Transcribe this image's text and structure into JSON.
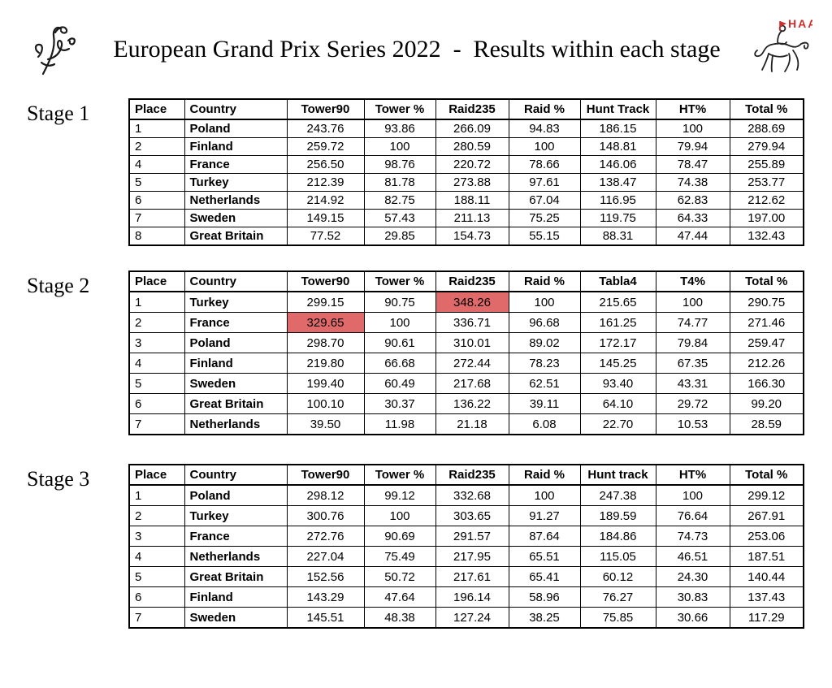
{
  "page": {
    "title": "European Grand Prix Series 2022  -  Results within each stage",
    "logo_right_text": "HAA"
  },
  "highlight_color": "#e06a6a",
  "stages": [
    {
      "label": "Stage 1",
      "columns": [
        "Place",
        "Country",
        "Tower90",
        "Tower %",
        "Raid235",
        "Raid %",
        "Hunt Track",
        "HT%",
        "Total %"
      ],
      "rows": [
        [
          "1",
          "Poland",
          "243.76",
          "93.86",
          "266.09",
          "94.83",
          "186.15",
          "100",
          "288.69"
        ],
        [
          "2",
          "Finland",
          "259.72",
          "100",
          "280.59",
          "100",
          "148.81",
          "79.94",
          "279.94"
        ],
        [
          "4",
          "France",
          "256.50",
          "98.76",
          "220.72",
          "78.66",
          "146.06",
          "78.47",
          "255.89"
        ],
        [
          "5",
          "Turkey",
          "212.39",
          "81.78",
          "273.88",
          "97.61",
          "138.47",
          "74.38",
          "253.77"
        ],
        [
          "6",
          "Netherlands",
          "214.92",
          "82.75",
          "188.11",
          "67.04",
          "116.95",
          "62.83",
          "212.62"
        ],
        [
          "7",
          "Sweden",
          "149.15",
          "57.43",
          "211.13",
          "75.25",
          "119.75",
          "64.33",
          "197.00"
        ],
        [
          "8",
          "Great Britain",
          "77.52",
          "29.85",
          "154.73",
          "55.15",
          "88.31",
          "47.44",
          "132.43"
        ]
      ],
      "highlights": []
    },
    {
      "label": "Stage 2",
      "columns": [
        "Place",
        "Country",
        "Tower90",
        "Tower %",
        "Raid235",
        "Raid %",
        "Tabla4",
        "T4%",
        "Total %"
      ],
      "rows": [
        [
          "1",
          "Turkey",
          "299.15",
          "90.75",
          "348.26",
          "100",
          "215.65",
          "100",
          "290.75"
        ],
        [
          "2",
          "France",
          "329.65",
          "100",
          "336.71",
          "96.68",
          "161.25",
          "74.77",
          "271.46"
        ],
        [
          "3",
          "Poland",
          "298.70",
          "90.61",
          "310.01",
          "89.02",
          "172.17",
          "79.84",
          "259.47"
        ],
        [
          "4",
          "Finland",
          "219.80",
          "66.68",
          "272.44",
          "78.23",
          "145.25",
          "67.35",
          "212.26"
        ],
        [
          "5",
          "Sweden",
          "199.40",
          "60.49",
          "217.68",
          "62.51",
          "93.40",
          "43.31",
          "166.30"
        ],
        [
          "6",
          "Great Britain",
          "100.10",
          "30.37",
          "136.22",
          "39.11",
          "64.10",
          "29.72",
          "99.20"
        ],
        [
          "7",
          "Netherlands",
          "39.50",
          "11.98",
          "21.18",
          "6.08",
          "22.70",
          "10.53",
          "28.59"
        ]
      ],
      "highlights": [
        {
          "row": 0,
          "col": 4
        },
        {
          "row": 1,
          "col": 2
        }
      ]
    },
    {
      "label": "Stage 3",
      "columns": [
        "Place",
        "Country",
        "Tower90",
        "Tower %",
        "Raid235",
        "Raid %",
        "Hunt track",
        "HT%",
        "Total %"
      ],
      "rows": [
        [
          "1",
          "Poland",
          "298.12",
          "99.12",
          "332.68",
          "100",
          "247.38",
          "100",
          "299.12"
        ],
        [
          "2",
          "Turkey",
          "300.76",
          "100",
          "303.65",
          "91.27",
          "189.59",
          "76.64",
          "267.91"
        ],
        [
          "3",
          "France",
          "272.76",
          "90.69",
          "291.57",
          "87.64",
          "184.86",
          "74.73",
          "253.06"
        ],
        [
          "4",
          "Netherlands",
          "227.04",
          "75.49",
          "217.95",
          "65.51",
          "115.05",
          "46.51",
          "187.51"
        ],
        [
          "5",
          "Great Britain",
          "152.56",
          "50.72",
          "217.61",
          "65.41",
          "60.12",
          "24.30",
          "140.44"
        ],
        [
          "6",
          "Finland",
          "143.29",
          "47.64",
          "196.14",
          "58.96",
          "76.27",
          "30.83",
          "137.43"
        ],
        [
          "7",
          "Sweden",
          "145.51",
          "48.38",
          "127.24",
          "38.25",
          "75.85",
          "30.66",
          "117.29"
        ]
      ],
      "highlights": []
    }
  ]
}
